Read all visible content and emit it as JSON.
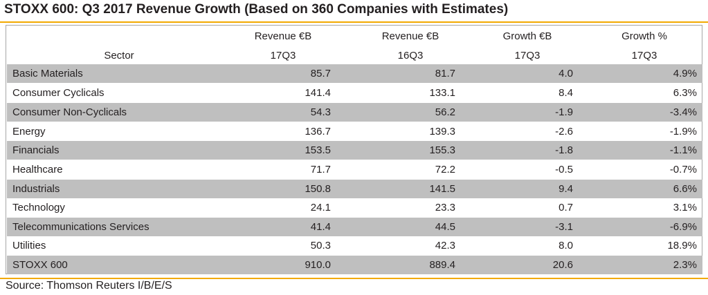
{
  "title": "STOXX 600: Q3 2017 Revenue Growth (Based on 360 Companies with Estimates)",
  "header": {
    "sector": "Sector",
    "rev17_line1": "Revenue €B",
    "rev17_line2": "17Q3",
    "rev16_line1": "Revenue €B",
    "rev16_line2": "16Q3",
    "growth_line1": "Growth €B",
    "growth_line2": "17Q3",
    "growthpct_line1": "Growth %",
    "growthpct_line2": "17Q3"
  },
  "rows": [
    {
      "sector": "Basic Materials",
      "rev17": "85.7",
      "rev16": "81.7",
      "growth": "4.0",
      "growth_pct": "4.9%"
    },
    {
      "sector": "Consumer Cyclicals",
      "rev17": "141.4",
      "rev16": "133.1",
      "growth": "8.4",
      "growth_pct": "6.3%"
    },
    {
      "sector": "Consumer Non-Cyclicals",
      "rev17": "54.3",
      "rev16": "56.2",
      "growth": "-1.9",
      "growth_pct": "-3.4%"
    },
    {
      "sector": "Energy",
      "rev17": "136.7",
      "rev16": "139.3",
      "growth": "-2.6",
      "growth_pct": "-1.9%"
    },
    {
      "sector": "Financials",
      "rev17": "153.5",
      "rev16": "155.3",
      "growth": "-1.8",
      "growth_pct": "-1.1%"
    },
    {
      "sector": "Healthcare",
      "rev17": "71.7",
      "rev16": "72.2",
      "growth": "-0.5",
      "growth_pct": "-0.7%"
    },
    {
      "sector": "Industrials",
      "rev17": "150.8",
      "rev16": "141.5",
      "growth": "9.4",
      "growth_pct": "6.6%"
    },
    {
      "sector": "Technology",
      "rev17": "24.1",
      "rev16": "23.3",
      "growth": "0.7",
      "growth_pct": "3.1%"
    },
    {
      "sector": "Telecommunications Services",
      "rev17": "41.4",
      "rev16": "44.5",
      "growth": "-3.1",
      "growth_pct": "-6.9%"
    },
    {
      "sector": "Utilities",
      "rev17": "50.3",
      "rev16": "42.3",
      "growth": "8.0",
      "growth_pct": "18.9%"
    },
    {
      "sector": "STOXX 600",
      "rev17": "910.0",
      "rev16": "889.4",
      "growth": "20.6",
      "growth_pct": "2.3%"
    }
  ],
  "source": "Source: Thomson Reuters I/B/E/S",
  "colors": {
    "accent_rule": "#f2a900",
    "shaded_row": "#bfbfbf",
    "border": "#a6a6a6"
  }
}
